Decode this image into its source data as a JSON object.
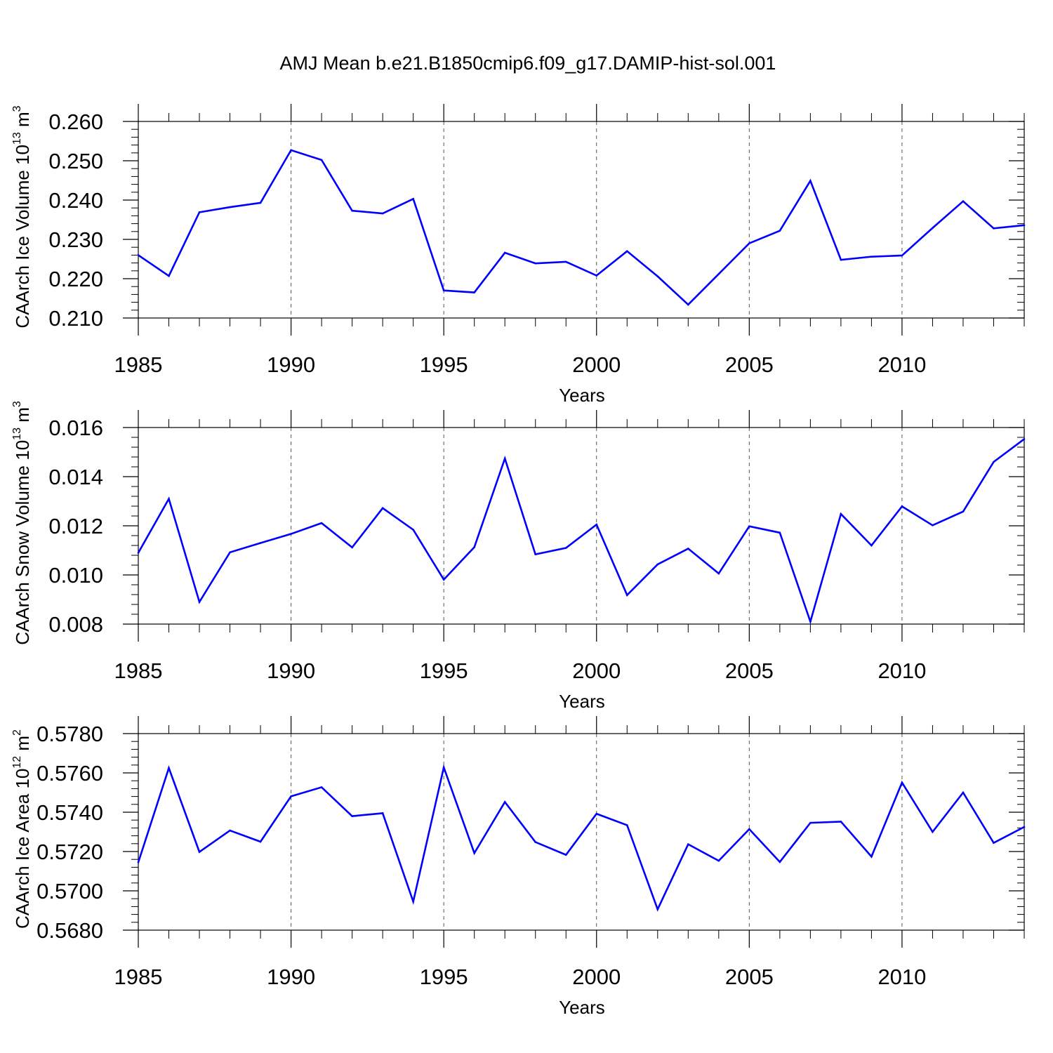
{
  "title": "AMJ Mean b.e21.B1850cmip6.f09_g17.DAMIP-hist-sol.001",
  "line_color": "#0000ff",
  "chart_data": [
    {
      "type": "line",
      "xlabel": "Years",
      "ylabel": {
        "base": "CAArch Ice Volume 10",
        "exp1": "13",
        "mid": " m",
        "exp2": "3"
      },
      "xlim": [
        1985,
        2014
      ],
      "ylim": [
        0.21,
        0.26
      ],
      "xticks": [
        1985,
        1990,
        1995,
        2000,
        2005,
        2010
      ],
      "xtick_labels": [
        "1985",
        "1990",
        "1995",
        "2000",
        "2005",
        "2010"
      ],
      "yticks": [
        0.21,
        0.22,
        0.23,
        0.24,
        0.25,
        0.26
      ],
      "ytick_labels": [
        "0.210",
        "0.220",
        "0.230",
        "0.240",
        "0.250",
        "0.260"
      ],
      "y_minor_step": 0.002,
      "x": [
        1985,
        1986,
        1987,
        1988,
        1989,
        1990,
        1991,
        1992,
        1993,
        1994,
        1995,
        1996,
        1997,
        1998,
        1999,
        2000,
        2001,
        2002,
        2003,
        2004,
        2005,
        2006,
        2007,
        2008,
        2009,
        2010,
        2011,
        2012,
        2013,
        2014
      ],
      "values": [
        0.226,
        0.2207,
        0.2369,
        0.2382,
        0.2393,
        0.2527,
        0.2502,
        0.2373,
        0.2366,
        0.2403,
        0.217,
        0.2165,
        0.2266,
        0.2239,
        0.2243,
        0.2208,
        0.227,
        0.2206,
        0.2134,
        0.2212,
        0.229,
        0.2322,
        0.2449,
        0.2248,
        0.2256,
        0.2259,
        0.2329,
        0.2397,
        0.2328,
        0.2336
      ]
    },
    {
      "type": "line",
      "xlabel": "Years",
      "ylabel": {
        "base": "CAArch Snow Volume 10",
        "exp1": "13",
        "mid": " m",
        "exp2": "3"
      },
      "xlim": [
        1985,
        2014
      ],
      "ylim": [
        0.008,
        0.016
      ],
      "xticks": [
        1985,
        1990,
        1995,
        2000,
        2005,
        2010
      ],
      "xtick_labels": [
        "1985",
        "1990",
        "1995",
        "2000",
        "2005",
        "2010"
      ],
      "yticks": [
        0.008,
        0.01,
        0.012,
        0.014,
        0.016
      ],
      "ytick_labels": [
        "0.008",
        "0.010",
        "0.012",
        "0.014",
        "0.016"
      ],
      "y_minor_step": 0.0004,
      "x": [
        1985,
        1986,
        1987,
        1988,
        1989,
        1990,
        1991,
        1992,
        1993,
        1994,
        1995,
        1996,
        1997,
        1998,
        1999,
        2000,
        2001,
        2002,
        2003,
        2004,
        2005,
        2006,
        2007,
        2008,
        2009,
        2010,
        2011,
        2012,
        2013,
        2014
      ],
      "values": [
        0.0109,
        0.0131,
        0.0089,
        0.01092,
        0.0113,
        0.01167,
        0.01211,
        0.01112,
        0.01272,
        0.01184,
        0.00981,
        0.01113,
        0.01474,
        0.01084,
        0.0111,
        0.01205,
        0.00918,
        0.01043,
        0.01107,
        0.01006,
        0.01198,
        0.01172,
        0.0081,
        0.01248,
        0.0112,
        0.01279,
        0.01202,
        0.01258,
        0.0146,
        0.01553
      ]
    },
    {
      "type": "line",
      "xlabel": "Years",
      "ylabel": {
        "base": "CAArch Ice Area 10",
        "exp1": "12",
        "mid": " m",
        "exp2": "2"
      },
      "xlim": [
        1985,
        2014
      ],
      "ylim": [
        0.568,
        0.578
      ],
      "xticks": [
        1985,
        1990,
        1995,
        2000,
        2005,
        2010
      ],
      "xtick_labels": [
        "1985",
        "1990",
        "1995",
        "2000",
        "2005",
        "2010"
      ],
      "yticks": [
        0.568,
        0.57,
        0.572,
        0.574,
        0.576,
        0.578
      ],
      "ytick_labels": [
        "0.5680",
        "0.5700",
        "0.5720",
        "0.5740",
        "0.5760",
        "0.5780"
      ],
      "y_minor_step": 0.0004,
      "x": [
        1985,
        1986,
        1987,
        1988,
        1989,
        1990,
        1991,
        1992,
        1993,
        1994,
        1995,
        1996,
        1997,
        1998,
        1999,
        2000,
        2001,
        2002,
        2003,
        2004,
        2005,
        2006,
        2007,
        2008,
        2009,
        2010,
        2011,
        2012,
        2013,
        2014
      ],
      "values": [
        0.57145,
        0.57625,
        0.57198,
        0.57307,
        0.5725,
        0.57481,
        0.57527,
        0.5738,
        0.57395,
        0.56945,
        0.57628,
        0.57192,
        0.57452,
        0.57248,
        0.57183,
        0.57392,
        0.57334,
        0.56906,
        0.57237,
        0.57153,
        0.57314,
        0.57147,
        0.57346,
        0.57352,
        0.57174,
        0.57551,
        0.573,
        0.575,
        0.57244,
        0.57325
      ]
    }
  ]
}
